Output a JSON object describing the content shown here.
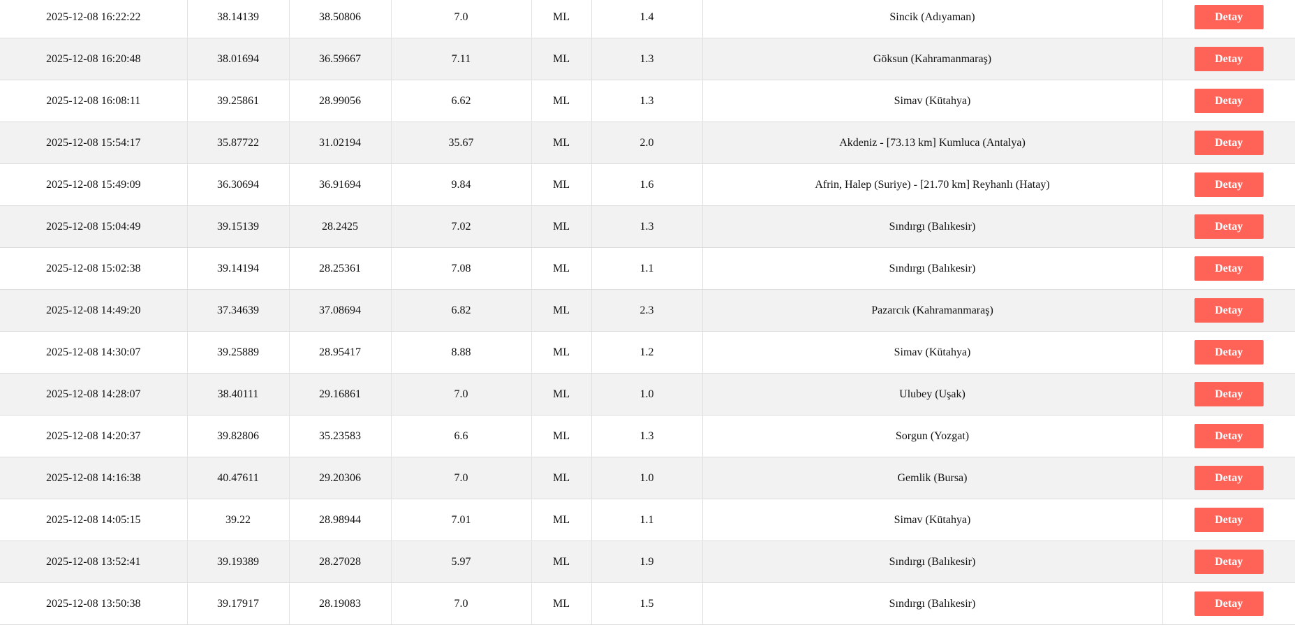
{
  "button_label": "Detay",
  "accent_color": "#ff6358",
  "rows": [
    {
      "date": "2025-12-08 16:22:22",
      "lat": "38.14139",
      "lon": "38.50806",
      "depth": "7.0",
      "type": "ML",
      "mag": "1.4",
      "location": "Sincik (Adıyaman)"
    },
    {
      "date": "2025-12-08 16:20:48",
      "lat": "38.01694",
      "lon": "36.59667",
      "depth": "7.11",
      "type": "ML",
      "mag": "1.3",
      "location": "Göksun (Kahramanmaraş)"
    },
    {
      "date": "2025-12-08 16:08:11",
      "lat": "39.25861",
      "lon": "28.99056",
      "depth": "6.62",
      "type": "ML",
      "mag": "1.3",
      "location": "Simav (Kütahya)"
    },
    {
      "date": "2025-12-08 15:54:17",
      "lat": "35.87722",
      "lon": "31.02194",
      "depth": "35.67",
      "type": "ML",
      "mag": "2.0",
      "location": "Akdeniz - [73.13 km] Kumluca (Antalya)"
    },
    {
      "date": "2025-12-08 15:49:09",
      "lat": "36.30694",
      "lon": "36.91694",
      "depth": "9.84",
      "type": "ML",
      "mag": "1.6",
      "location": "Afrin, Halep (Suriye) - [21.70 km] Reyhanlı (Hatay)"
    },
    {
      "date": "2025-12-08 15:04:49",
      "lat": "39.15139",
      "lon": "28.2425",
      "depth": "7.02",
      "type": "ML",
      "mag": "1.3",
      "location": "Sındırgı (Balıkesir)"
    },
    {
      "date": "2025-12-08 15:02:38",
      "lat": "39.14194",
      "lon": "28.25361",
      "depth": "7.08",
      "type": "ML",
      "mag": "1.1",
      "location": "Sındırgı (Balıkesir)"
    },
    {
      "date": "2025-12-08 14:49:20",
      "lat": "37.34639",
      "lon": "37.08694",
      "depth": "6.82",
      "type": "ML",
      "mag": "2.3",
      "location": "Pazarcık (Kahramanmaraş)"
    },
    {
      "date": "2025-12-08 14:30:07",
      "lat": "39.25889",
      "lon": "28.95417",
      "depth": "8.88",
      "type": "ML",
      "mag": "1.2",
      "location": "Simav (Kütahya)"
    },
    {
      "date": "2025-12-08 14:28:07",
      "lat": "38.40111",
      "lon": "29.16861",
      "depth": "7.0",
      "type": "ML",
      "mag": "1.0",
      "location": "Ulubey (Uşak)"
    },
    {
      "date": "2025-12-08 14:20:37",
      "lat": "39.82806",
      "lon": "35.23583",
      "depth": "6.6",
      "type": "ML",
      "mag": "1.3",
      "location": "Sorgun (Yozgat)"
    },
    {
      "date": "2025-12-08 14:16:38",
      "lat": "40.47611",
      "lon": "29.20306",
      "depth": "7.0",
      "type": "ML",
      "mag": "1.0",
      "location": "Gemlik (Bursa)"
    },
    {
      "date": "2025-12-08 14:05:15",
      "lat": "39.22",
      "lon": "28.98944",
      "depth": "7.01",
      "type": "ML",
      "mag": "1.1",
      "location": "Simav (Kütahya)"
    },
    {
      "date": "2025-12-08 13:52:41",
      "lat": "39.19389",
      "lon": "28.27028",
      "depth": "5.97",
      "type": "ML",
      "mag": "1.9",
      "location": "Sındırgı (Balıkesir)"
    },
    {
      "date": "2025-12-08 13:50:38",
      "lat": "39.17917",
      "lon": "28.19083",
      "depth": "7.0",
      "type": "ML",
      "mag": "1.5",
      "location": "Sındırgı (Balıkesir)"
    }
  ]
}
